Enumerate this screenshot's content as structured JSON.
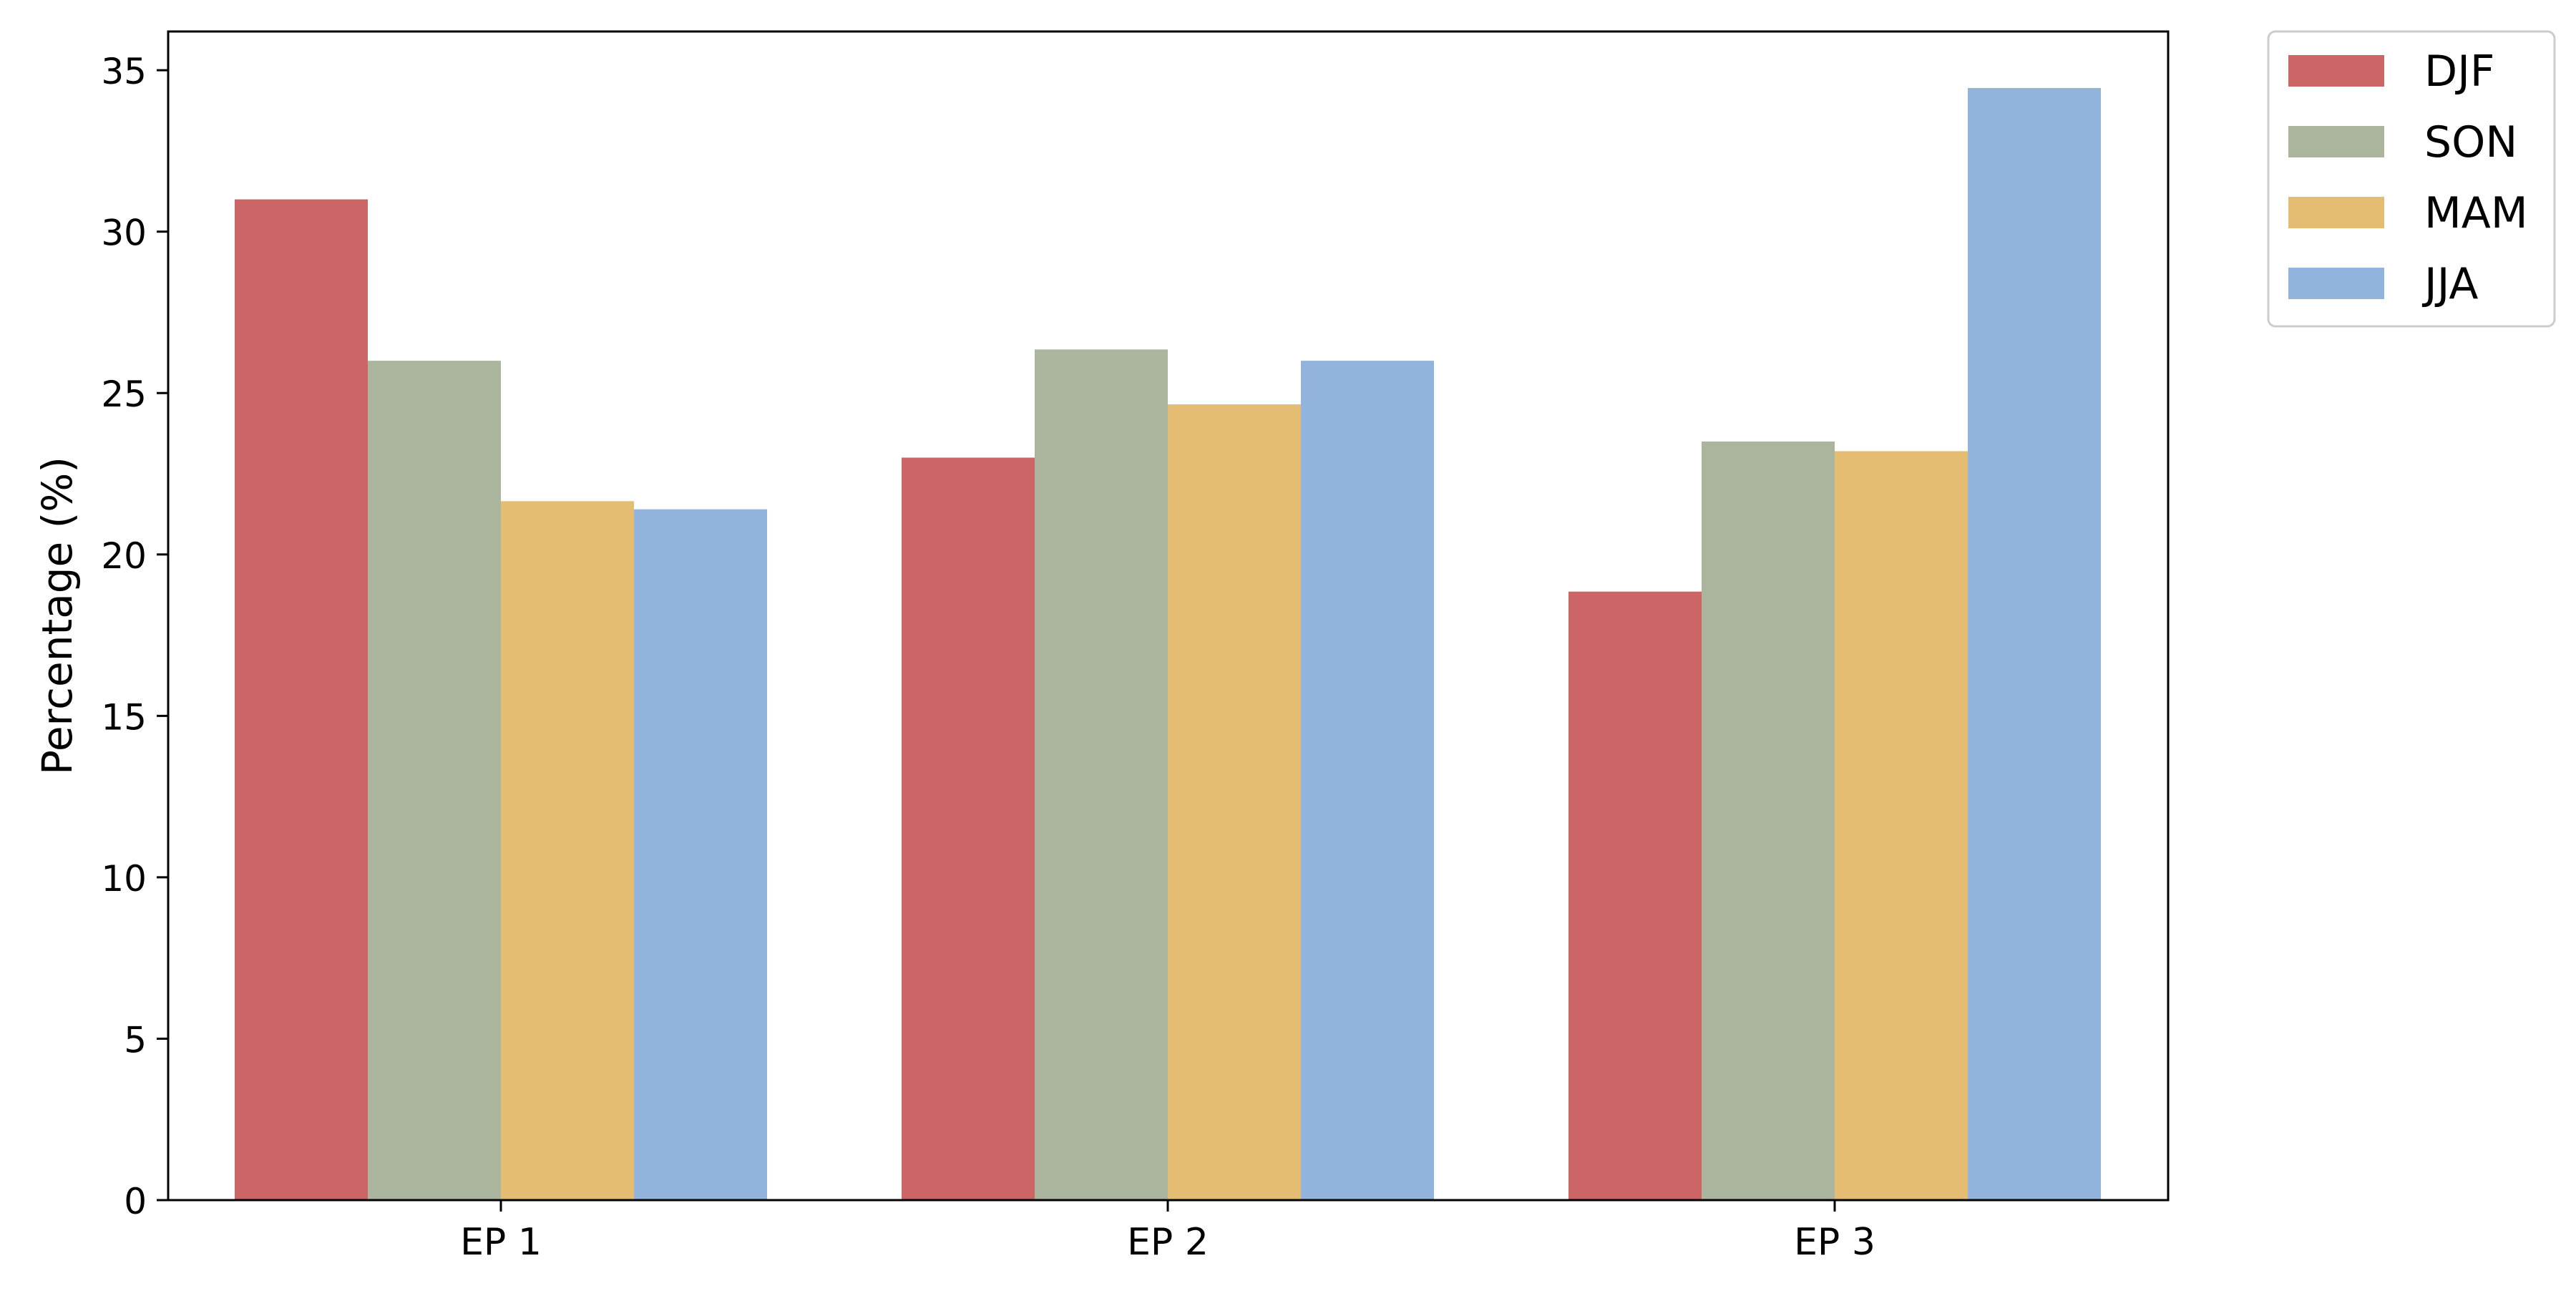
{
  "chart_data": {
    "type": "bar",
    "title": "",
    "xlabel": "",
    "ylabel": "Percentage (%)",
    "categories": [
      "EP 1",
      "EP 2",
      "EP 3"
    ],
    "ylim": [
      0,
      36.2
    ],
    "yticks": [
      0,
      5,
      10,
      15,
      20,
      25,
      30,
      35
    ],
    "grid": false,
    "legend_position": "outside-top-right",
    "series": [
      {
        "name": "DJF",
        "color": "#cc6666",
        "values": [
          31.0,
          23.0,
          18.85
        ]
      },
      {
        "name": "SON",
        "color": "#abb59e",
        "values": [
          26.0,
          26.35,
          23.5
        ]
      },
      {
        "name": "MAM",
        "color": "#e5bd72",
        "values": [
          21.65,
          24.65,
          23.2
        ]
      },
      {
        "name": "JJA",
        "color": "#92b3dc",
        "values": [
          21.4,
          26.0,
          34.45
        ]
      }
    ]
  }
}
